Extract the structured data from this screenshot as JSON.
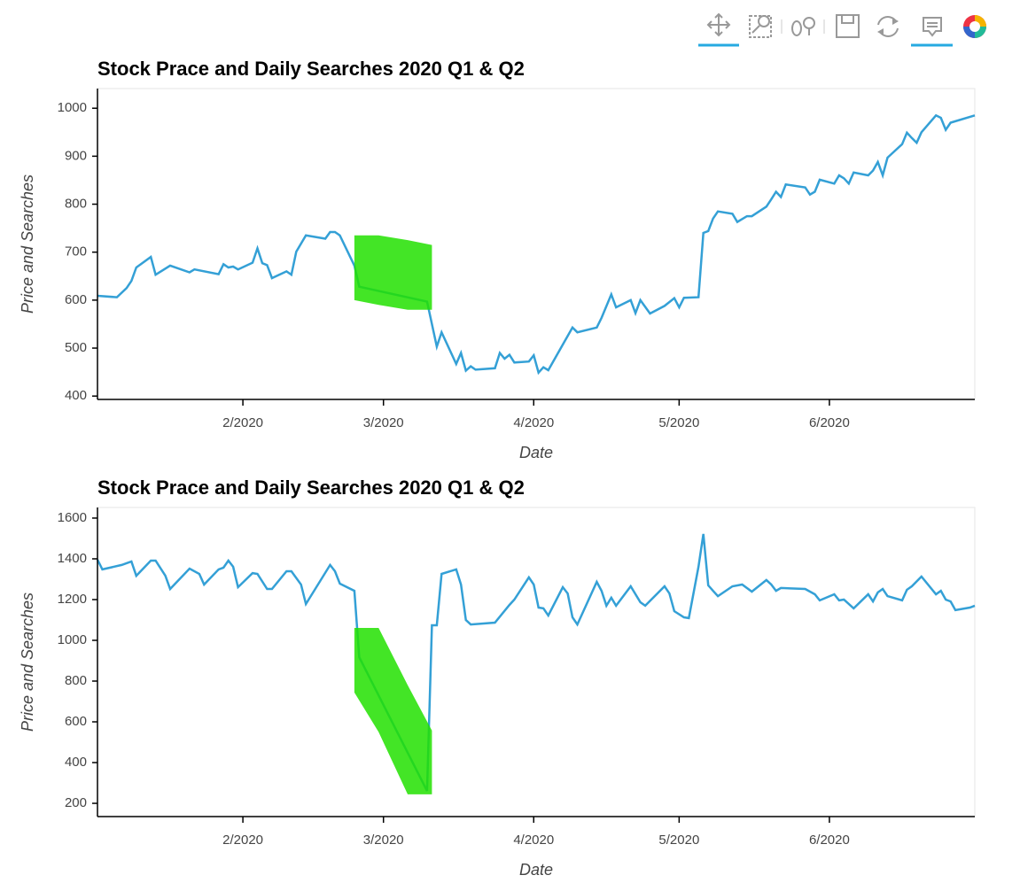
{
  "chart_data": [
    {
      "type": "line",
      "title": "Stock Prace and Daily Searches 2020 Q1 & Q2",
      "xlabel": "Date",
      "ylabel": "Price and Searches",
      "x": [
        1,
        5,
        7,
        8,
        9,
        12,
        13,
        16,
        20,
        21,
        26,
        27,
        28,
        29,
        30,
        33,
        34,
        35,
        36,
        37,
        40,
        41,
        42,
        44,
        48,
        49,
        50,
        51,
        54,
        55,
        69,
        71,
        72,
        75,
        76,
        77,
        78,
        79,
        83,
        84,
        85,
        86,
        87,
        90,
        91,
        92,
        93,
        94,
        99,
        100,
        104,
        105,
        107,
        108,
        111,
        112,
        113,
        115,
        118,
        120,
        121,
        122,
        125,
        126,
        127,
        128,
        129,
        132,
        133,
        135,
        136,
        139,
        140,
        141,
        142,
        143,
        147,
        148,
        149,
        150,
        153,
        154,
        155,
        156,
        157,
        160,
        161,
        162,
        163,
        164,
        167,
        168,
        169,
        170,
        171,
        174,
        175,
        176,
        177,
        182
      ],
      "values": [
        609,
        606,
        625,
        640,
        668,
        690,
        653,
        672,
        658,
        664,
        654,
        675,
        668,
        670,
        664,
        678,
        708,
        677,
        673,
        646,
        660,
        653,
        701,
        735,
        728,
        742,
        742,
        735,
        672,
        628,
        597,
        503,
        533,
        467,
        490,
        453,
        462,
        455,
        458,
        490,
        478,
        486,
        470,
        472,
        485,
        449,
        460,
        454,
        543,
        533,
        543,
        563,
        612,
        585,
        600,
        573,
        600,
        572,
        588,
        604,
        585,
        605,
        606,
        740,
        744,
        770,
        785,
        780,
        763,
        775,
        775,
        795,
        810,
        826,
        815,
        841,
        835,
        820,
        826,
        851,
        843,
        860,
        854,
        843,
        866,
        860,
        870,
        888,
        860,
        897,
        925,
        949,
        938,
        928,
        950,
        985,
        980,
        955,
        970,
        985
      ],
      "color": "#34a0d6",
      "band": {
        "x": [
          54,
          59,
          65,
          70
        ],
        "upper": [
          735,
          735,
          725,
          715
        ],
        "lower": [
          600,
          590,
          580,
          580
        ],
        "color": "#22e000"
      },
      "xlim": [
        1,
        182
      ],
      "ylim": [
        393,
        1041
      ],
      "xticks": [
        {
          "value": 31,
          "label": "2/2020"
        },
        {
          "value": 60,
          "label": "3/2020"
        },
        {
          "value": 91,
          "label": "4/2020"
        },
        {
          "value": 121,
          "label": "5/2020"
        },
        {
          "value": 152,
          "label": "6/2020"
        }
      ],
      "yticks": [
        400,
        500,
        600,
        700,
        800,
        900,
        1000
      ]
    },
    {
      "type": "line",
      "title": "Stock Prace and Daily Searches 2020 Q1 & Q2",
      "xlabel": "Date",
      "ylabel": "Price and Searches",
      "x": [
        1,
        2,
        6,
        8,
        9,
        12,
        13,
        15,
        16,
        20,
        22,
        23,
        26,
        27,
        28,
        29,
        30,
        33,
        34,
        36,
        37,
        40,
        41,
        43,
        44,
        49,
        50,
        51,
        54,
        55,
        69,
        70,
        71,
        72,
        75,
        76,
        77,
        78,
        83,
        86,
        87,
        90,
        91,
        92,
        93,
        94,
        97,
        98,
        99,
        100,
        104,
        105,
        106,
        107,
        108,
        111,
        113,
        114,
        118,
        119,
        120,
        122,
        123,
        125,
        126,
        127,
        128,
        129,
        132,
        134,
        136,
        139,
        140,
        141,
        142,
        147,
        149,
        150,
        153,
        154,
        155,
        157,
        160,
        161,
        162,
        163,
        164,
        167,
        168,
        169,
        171,
        174,
        175,
        176,
        177,
        178,
        181,
        182
      ],
      "values": [
        1396,
        1348,
        1370,
        1387,
        1317,
        1391,
        1391,
        1317,
        1252,
        1352,
        1326,
        1274,
        1348,
        1357,
        1391,
        1361,
        1261,
        1330,
        1326,
        1252,
        1252,
        1339,
        1339,
        1274,
        1178,
        1370,
        1339,
        1278,
        1243,
        917,
        261,
        1074,
        1074,
        1326,
        1348,
        1274,
        1100,
        1078,
        1087,
        1174,
        1200,
        1309,
        1274,
        1161,
        1157,
        1122,
        1261,
        1230,
        1113,
        1078,
        1287,
        1243,
        1170,
        1209,
        1170,
        1265,
        1187,
        1170,
        1265,
        1230,
        1143,
        1113,
        1109,
        1361,
        1522,
        1270,
        1243,
        1217,
        1265,
        1274,
        1239,
        1296,
        1274,
        1243,
        1257,
        1252,
        1226,
        1196,
        1226,
        1196,
        1200,
        1157,
        1226,
        1191,
        1235,
        1252,
        1217,
        1196,
        1248,
        1265,
        1313,
        1226,
        1243,
        1200,
        1191,
        1148,
        1161,
        1170
      ],
      "color": "#34a0d6",
      "band": {
        "x": [
          54,
          59,
          65,
          70
        ],
        "upper": [
          1061,
          1061,
          780,
          557
        ],
        "lower": [
          744,
          550,
          244,
          244
        ],
        "color": "#22e000"
      },
      "xlim": [
        1,
        182
      ],
      "ylim": [
        135,
        1652
      ],
      "xticks": [
        {
          "value": 31,
          "label": "2/2020"
        },
        {
          "value": 60,
          "label": "3/2020"
        },
        {
          "value": 91,
          "label": "4/2020"
        },
        {
          "value": 121,
          "label": "5/2020"
        },
        {
          "value": 152,
          "label": "6/2020"
        }
      ],
      "yticks": [
        200,
        400,
        600,
        800,
        1000,
        1200,
        1400,
        1600
      ]
    }
  ]
}
